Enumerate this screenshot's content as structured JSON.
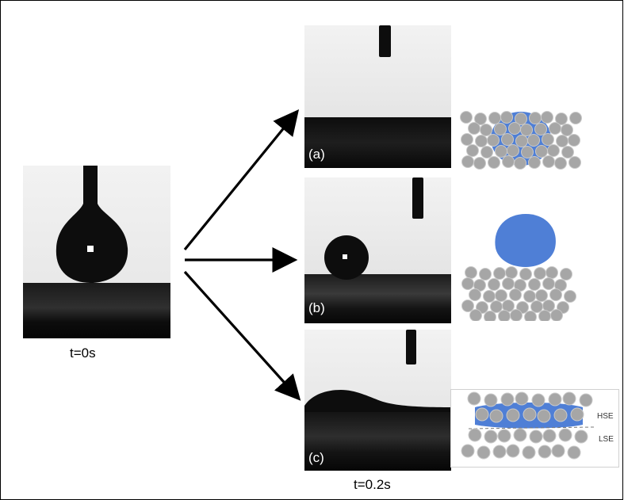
{
  "captions": {
    "initial": "t=0s",
    "final": "t=0.2s"
  },
  "panels": [
    {
      "label": "(a)"
    },
    {
      "label": "(b)"
    },
    {
      "label": "(c)"
    }
  ],
  "schematic_c": {
    "upper_label": "HSE",
    "lower_label": "LSE"
  },
  "colors": {
    "water": "#4f7fd6",
    "particle": "#a6a6a6",
    "particle_outline": "#c9c9c9",
    "shadow": "#0d0d0d",
    "photo_bg": "#e9e9e9"
  }
}
